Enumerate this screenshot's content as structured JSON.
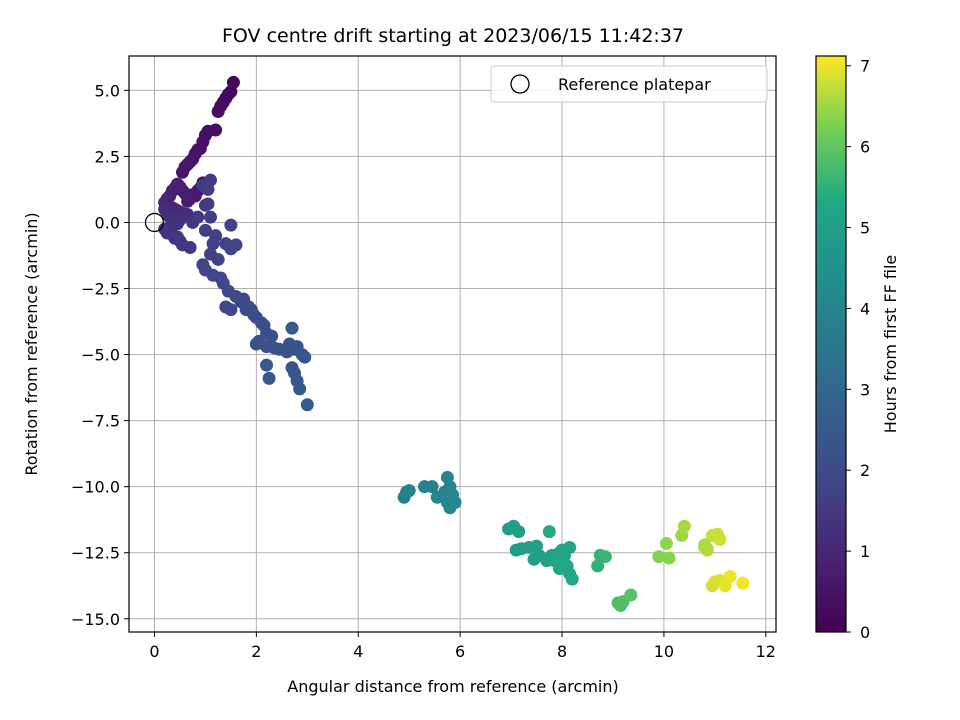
{
  "chart_data": {
    "type": "scatter",
    "title": "FOV centre drift starting at 2023/06/15 11:42:37",
    "xlabel": "Angular distance from reference (arcmin)",
    "ylabel": "Rotation from reference (arcmin)",
    "xlim": [
      -0.5,
      12.2
    ],
    "ylim": [
      -15.5,
      6.3
    ],
    "xticks": [
      0,
      2,
      4,
      6,
      8,
      10,
      12
    ],
    "yticks": [
      5.0,
      2.5,
      0.0,
      -2.5,
      -5.0,
      -7.5,
      -10.0,
      -12.5,
      -15.0
    ],
    "xtick_labels": [
      "0",
      "2",
      "4",
      "6",
      "8",
      "10",
      "12"
    ],
    "ytick_labels": [
      "5.0",
      "2.5",
      "0.0",
      "−2.5",
      "−5.0",
      "−7.5",
      "−10.0",
      "−12.5",
      "−15.0"
    ],
    "grid": true,
    "legend": {
      "position": "top-right",
      "entries": [
        "Reference platepar"
      ]
    },
    "colorbar": {
      "label": "Hours from first FF file",
      "min": 0,
      "max": 7.12,
      "ticks": [
        0,
        1,
        2,
        3,
        4,
        5,
        6,
        7
      ],
      "tick_labels": [
        "0",
        "1",
        "2",
        "3",
        "4",
        "5",
        "6",
        "7"
      ],
      "colormap": "viridis"
    },
    "reference_point": {
      "name": "Reference platepar",
      "x": 0,
      "y": 0
    },
    "series": [
      {
        "x": [
          1.55,
          1.5,
          1.45,
          1.4,
          1.35,
          1.3,
          1.25,
          1.2,
          1.05,
          1.0,
          0.95,
          0.9,
          0.85,
          0.8,
          0.75,
          0.7,
          0.65,
          0.6,
          0.55,
          0.95,
          1.0,
          0.9,
          0.85,
          0.8,
          0.75,
          0.7,
          0.65,
          0.6,
          0.55,
          0.5,
          0.45,
          0.4,
          0.35,
          0.3,
          0.25,
          0.2,
          0.25,
          0.3,
          0.35,
          0.4,
          0.45,
          0.5,
          0.55,
          0.6,
          0.65,
          0.2,
          0.25,
          0.3,
          0.35,
          0.4,
          0.45,
          0.5,
          0.3,
          0.35,
          0.4,
          0.2,
          0.25,
          0.3,
          0.45,
          0.5,
          0.55,
          0.7,
          0.75,
          0.85,
          1.0,
          0.95,
          1.1,
          1.05
        ],
        "y": [
          5.3,
          4.95,
          4.85,
          4.7,
          4.55,
          4.4,
          4.2,
          3.5,
          3.45,
          3.3,
          3.05,
          2.8,
          2.75,
          2.6,
          2.4,
          2.3,
          2.2,
          2.1,
          1.9,
          1.5,
          1.4,
          1.3,
          1.2,
          1.0,
          1.05,
          0.9,
          0.8,
          1.1,
          1.2,
          1.35,
          1.45,
          1.3,
          1.2,
          1.0,
          0.9,
          0.75,
          0.7,
          0.6,
          0.55,
          0.5,
          0.45,
          0.4,
          0.35,
          0.3,
          0.3,
          0.5,
          0.3,
          0.2,
          0.1,
          0.0,
          -0.05,
          0.1,
          -0.3,
          -0.45,
          -0.6,
          -0.25,
          -0.4,
          -0.35,
          -0.55,
          -0.7,
          -0.85,
          -0.95,
          0.0,
          0.2,
          0.65,
          1.4,
          1.6,
          1.25
        ],
        "t": [
          0.12,
          0.18,
          0.22,
          0.25,
          0.28,
          0.3,
          0.33,
          0.36,
          0.4,
          0.42,
          0.44,
          0.46,
          0.48,
          0.5,
          0.52,
          0.54,
          0.56,
          0.58,
          0.6,
          0.62,
          0.64,
          0.66,
          0.68,
          0.7,
          0.72,
          0.74,
          0.76,
          0.78,
          0.8,
          0.82,
          0.84,
          0.86,
          0.88,
          0.9,
          0.92,
          0.94,
          0.96,
          0.98,
          1.0,
          1.02,
          1.04,
          1.06,
          1.08,
          1.1,
          1.12,
          1.14,
          1.16,
          1.18,
          1.2,
          1.22,
          1.24,
          1.26,
          1.28,
          1.3,
          1.32,
          1.34,
          1.36,
          1.38,
          1.4,
          1.42,
          1.44,
          1.46,
          1.48,
          1.5,
          1.52,
          1.54,
          1.56,
          1.58
        ]
      },
      {
        "x": [
          1.05,
          1.1,
          1.0,
          1.2,
          1.15,
          1.1,
          1.25,
          1.5,
          1.4,
          1.6,
          1.5,
          0.95,
          1.0,
          1.15,
          1.3,
          1.35,
          1.45,
          1.6,
          1.7,
          1.75,
          1.85,
          1.9,
          1.95,
          2.0,
          2.1,
          2.15,
          2.2,
          2.3,
          2.05,
          2.0,
          2.2,
          2.35,
          2.45,
          2.6,
          2.65,
          2.75,
          2.8,
          2.9,
          2.95,
          2.7,
          2.75,
          2.8,
          2.85,
          2.2,
          2.25,
          2.7,
          3.0,
          1.4,
          1.5,
          1.8
        ],
        "y": [
          0.7,
          0.2,
          -0.3,
          -0.5,
          -0.8,
          -1.2,
          -1.4,
          -0.1,
          -0.8,
          -0.85,
          -1.0,
          -1.6,
          -1.8,
          -2.0,
          -2.1,
          -2.3,
          -2.6,
          -2.8,
          -3.0,
          -2.9,
          -3.2,
          -3.3,
          -3.5,
          -3.6,
          -3.8,
          -3.9,
          -4.2,
          -4.3,
          -4.5,
          -4.6,
          -4.7,
          -4.75,
          -4.8,
          -4.9,
          -4.6,
          -4.8,
          -4.7,
          -5.0,
          -5.1,
          -5.5,
          -5.7,
          -6.0,
          -6.3,
          -5.4,
          -5.9,
          -4.0,
          -6.9,
          -3.2,
          -3.3,
          -3.3
        ],
        "t": [
          1.6,
          1.62,
          1.64,
          1.66,
          1.68,
          1.7,
          1.72,
          1.74,
          1.76,
          1.78,
          1.8,
          1.82,
          1.84,
          1.86,
          1.88,
          1.9,
          1.92,
          1.94,
          1.96,
          1.98,
          2.0,
          2.02,
          2.04,
          2.06,
          2.08,
          2.1,
          2.12,
          2.14,
          2.16,
          2.18,
          2.2,
          2.22,
          2.24,
          2.26,
          2.28,
          2.3,
          2.32,
          2.34,
          2.36,
          2.38,
          2.4,
          2.42,
          2.44,
          2.46,
          2.48,
          2.5,
          2.55,
          1.85,
          1.9,
          2.05
        ]
      },
      {
        "x": [
          4.9,
          4.95,
          5.0,
          5.3,
          5.45,
          5.55,
          5.7,
          5.75,
          5.8,
          5.9,
          5.85,
          5.8,
          5.75
        ],
        "y": [
          -10.4,
          -10.2,
          -10.15,
          -10.0,
          -10.0,
          -10.4,
          -10.2,
          -9.65,
          -10.0,
          -10.6,
          -10.3,
          -10.8,
          -10.6
        ],
        "t": [
          3.9,
          3.92,
          3.94,
          3.96,
          3.98,
          4.0,
          4.02,
          4.04,
          4.06,
          4.08,
          4.1,
          4.12,
          4.14
        ]
      },
      {
        "x": [
          6.95,
          7.05,
          7.15,
          7.2,
          7.1,
          7.35,
          7.5,
          7.55,
          7.45,
          7.7,
          7.8,
          7.9,
          7.95,
          8.0,
          8.05,
          8.15,
          7.85,
          7.95,
          8.1,
          8.15,
          8.2,
          8.0,
          8.05,
          7.75
        ],
        "y": [
          -11.6,
          -11.5,
          -11.7,
          -12.35,
          -12.4,
          -12.3,
          -12.25,
          -12.6,
          -12.75,
          -12.8,
          -12.6,
          -12.7,
          -12.5,
          -12.4,
          -12.6,
          -12.3,
          -12.8,
          -13.1,
          -13.0,
          -13.3,
          -13.5,
          -12.9,
          -13.1,
          -11.7
        ],
        "t": [
          4.9,
          4.92,
          4.94,
          4.96,
          4.98,
          5.0,
          5.02,
          5.04,
          5.06,
          5.08,
          5.1,
          5.12,
          5.14,
          5.16,
          5.18,
          5.2,
          5.22,
          5.24,
          5.26,
          5.28,
          5.3,
          5.32,
          5.34,
          5.36
        ]
      },
      {
        "x": [
          8.7,
          8.75,
          8.85,
          9.1,
          9.15,
          9.2,
          9.35
        ],
        "y": [
          -13.0,
          -12.6,
          -12.65,
          -14.4,
          -14.5,
          -14.35,
          -14.1
        ],
        "t": [
          5.5,
          5.55,
          5.6,
          5.75,
          5.8,
          5.85,
          5.9
        ]
      },
      {
        "x": [
          9.9,
          10.1,
          10.05,
          10.35,
          10.4,
          10.8,
          10.85,
          10.95,
          11.05,
          11.1,
          10.95,
          11.0,
          11.1,
          11.2,
          11.3,
          11.55,
          10.8,
          10.85
        ],
        "y": [
          -12.65,
          -12.7,
          -12.15,
          -11.85,
          -11.5,
          -12.3,
          -12.4,
          -11.85,
          -11.8,
          -12.0,
          -13.75,
          -13.6,
          -13.55,
          -13.75,
          -13.4,
          -13.65,
          -12.2,
          -12.35
        ],
        "t": [
          6.3,
          6.35,
          6.4,
          6.5,
          6.55,
          6.7,
          6.72,
          6.75,
          6.78,
          6.8,
          6.85,
          6.88,
          6.9,
          6.95,
          7.0,
          7.05,
          6.6,
          6.62
        ]
      }
    ]
  }
}
